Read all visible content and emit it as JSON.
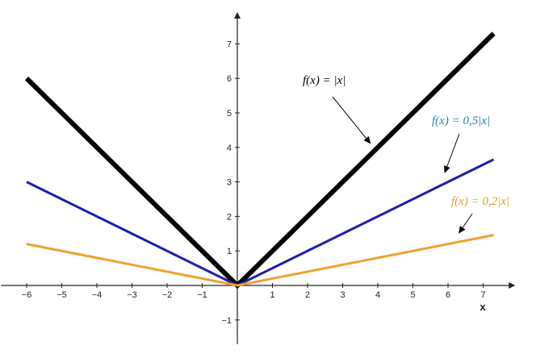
{
  "chart_data": {
    "type": "line",
    "xlim": [
      -6.5,
      7.5
    ],
    "ylim": [
      -1.7,
      7.5
    ],
    "x_ticks": [
      -6,
      -5,
      -4,
      -3,
      -2,
      -1,
      1,
      2,
      3,
      4,
      5,
      6,
      7
    ],
    "y_ticks": [
      -1,
      1,
      2,
      3,
      4,
      5,
      6,
      7
    ],
    "xlabel": "x",
    "ylabel": "",
    "grid": false,
    "series": [
      {
        "coef": 1,
        "x": [
          -6,
          0,
          7.3
        ],
        "y": [
          6,
          0,
          7.3
        ],
        "color": "#000000",
        "width": 6
      },
      {
        "coef": 0.5,
        "x": [
          -6,
          0,
          7.3
        ],
        "y": [
          3,
          0,
          3.65
        ],
        "color": "#1f1fa8",
        "width": 3
      },
      {
        "coef": 0.2,
        "x": [
          -6,
          0,
          7.3
        ],
        "y": [
          1.2,
          0,
          1.46
        ],
        "color": "#f0a030",
        "width": 3
      }
    ],
    "annotations": [
      {
        "text": "f(x) = |x|",
        "color": "#000000",
        "arrow_to": [
          3.8,
          4.1
        ]
      },
      {
        "text": "f(x) = 0,5|x|",
        "color": "#2e7fa8",
        "arrow_to": [
          5.9,
          3.25
        ]
      },
      {
        "text": "f(x) = 0,2|x|",
        "color": "#e0a030",
        "arrow_to": [
          6.3,
          1.5
        ]
      }
    ]
  }
}
